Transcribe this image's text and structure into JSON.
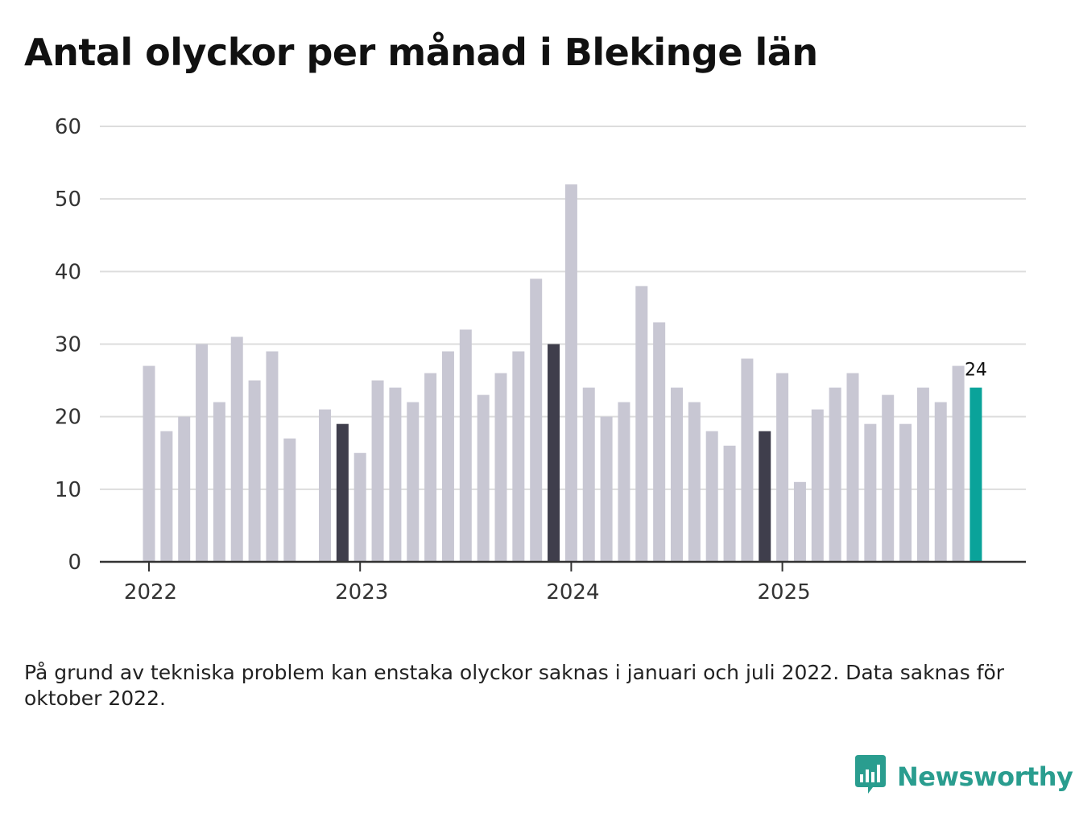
{
  "title": "Antal olyckor per månad i Blekinge län",
  "footnote": "På grund av tekniska problem kan enstaka olyckor saknas i januari och juli 2022. Data saknas för oktober 2022.",
  "brand": {
    "name": "Newsworthy",
    "icon": "newsworthy-logo-icon",
    "color": "#2a9d8f"
  },
  "colors": {
    "bar": "#c8c7d3",
    "december": "#3f3e4c",
    "latest": "#0aa39a",
    "grid": "#dddddd",
    "axis": "#333333"
  },
  "chart_data": {
    "type": "bar",
    "title": "Antal olyckor per månad i Blekinge län",
    "xlabel": "",
    "ylabel": "",
    "ylim": [
      0,
      60
    ],
    "yticks": [
      "0",
      "10",
      "20",
      "30",
      "40",
      "50",
      "60"
    ],
    "xticks": [
      {
        "label": "2022",
        "month": "2022-01"
      },
      {
        "label": "2023",
        "month": "2023-01"
      },
      {
        "label": "2024",
        "month": "2024-01"
      },
      {
        "label": "2025",
        "month": "2025-01"
      }
    ],
    "categories": [
      "2022-01",
      "2022-02",
      "2022-03",
      "2022-04",
      "2022-05",
      "2022-06",
      "2022-07",
      "2022-08",
      "2022-09",
      "2022-10",
      "2022-11",
      "2022-12",
      "2023-01",
      "2023-02",
      "2023-03",
      "2023-04",
      "2023-05",
      "2023-06",
      "2023-07",
      "2023-08",
      "2023-09",
      "2023-10",
      "2023-11",
      "2023-12",
      "2024-01",
      "2024-02",
      "2024-03",
      "2024-04",
      "2024-05",
      "2024-06",
      "2024-07",
      "2024-08",
      "2024-09",
      "2024-10",
      "2024-11",
      "2024-12",
      "2025-01",
      "2025-02",
      "2025-03",
      "2025-04",
      "2025-05",
      "2025-06",
      "2025-07",
      "2025-08",
      "2025-09",
      "2025-10",
      "2025-11",
      "2025-12"
    ],
    "values": [
      27,
      18,
      20,
      30,
      22,
      31,
      25,
      29,
      17,
      null,
      21,
      19,
      15,
      25,
      24,
      22,
      26,
      29,
      32,
      23,
      26,
      29,
      39,
      30,
      52,
      24,
      20,
      22,
      38,
      33,
      24,
      22,
      18,
      16,
      28,
      18,
      26,
      11,
      21,
      24,
      26,
      19,
      23,
      19,
      24,
      22,
      27,
      24
    ],
    "highlight_months": [
      "2022-12",
      "2023-12",
      "2024-12",
      "2025-12"
    ],
    "latest_label": "24"
  }
}
